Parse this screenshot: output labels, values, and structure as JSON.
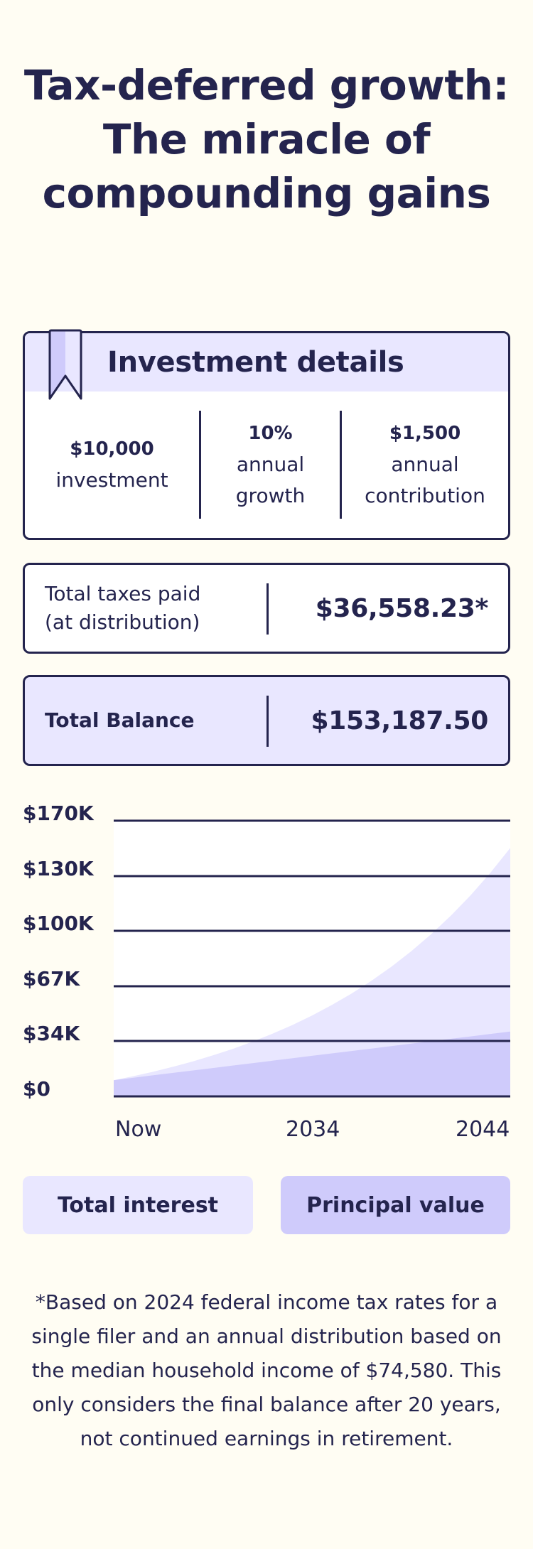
{
  "header": {
    "title": "Tax-deferred growth: The miracle of compounding gains"
  },
  "investment_details": {
    "title": "Investment details",
    "icon": "bookmark-ribbon-icon",
    "items": [
      {
        "value": "$10,000",
        "label": "investment"
      },
      {
        "value": "10%",
        "label": "annual growth"
      },
      {
        "value": "$1,500",
        "label": "annual contribution"
      }
    ]
  },
  "taxes": {
    "label_line1": "Total taxes paid",
    "label_line2": "(at distribution)",
    "value": "$36,558.23*"
  },
  "balance": {
    "label": "Total Balance",
    "value": "$153,187.50"
  },
  "legend": {
    "total_interest": "Total interest",
    "principal_value": "Principal value"
  },
  "colors": {
    "background": "#fffdf3",
    "ink": "#24244e",
    "interest_fill": "#e9e7ff",
    "principal_fill": "#cfcbfb",
    "plot_bg": "#ffffff"
  },
  "footnote": "*Based on 2024 federal income tax rates for a single filer and an annual distribution based on the median household income of $74,580. This only considers the final balance after 20 years, not continued earnings in retirement.",
  "chart_data": {
    "type": "area",
    "title": "",
    "xlabel": "",
    "ylabel": "",
    "x_tick_labels": [
      "Now",
      "2034",
      "2044"
    ],
    "y_tick_labels": [
      "$0",
      "$34K",
      "$67K",
      "$100K",
      "$130K",
      "$170K"
    ],
    "ylim": [
      0,
      170000
    ],
    "grid": true,
    "legend_position": "bottom",
    "x": [
      0,
      1,
      2,
      3,
      4,
      5,
      6,
      7,
      8,
      9,
      10,
      11,
      12,
      13,
      14,
      15,
      16,
      17,
      18,
      19,
      20
    ],
    "series": [
      {
        "name": "Total interest",
        "description": "Total balance (principal + compounded interest), stacked top area",
        "values": [
          10000,
          12500,
          15250,
          18275,
          21603,
          25263,
          29289,
          33718,
          38590,
          43949,
          49844,
          56328,
          63461,
          71307,
          79938,
          89432,
          99875,
          111363,
          123999,
          137899,
          153187
        ]
      },
      {
        "name": "Principal value",
        "values": [
          10000,
          11500,
          13000,
          14500,
          16000,
          17500,
          19000,
          20500,
          22000,
          23500,
          25000,
          26500,
          28000,
          29500,
          31000,
          32500,
          34000,
          35500,
          37000,
          38500,
          40000
        ]
      }
    ]
  }
}
